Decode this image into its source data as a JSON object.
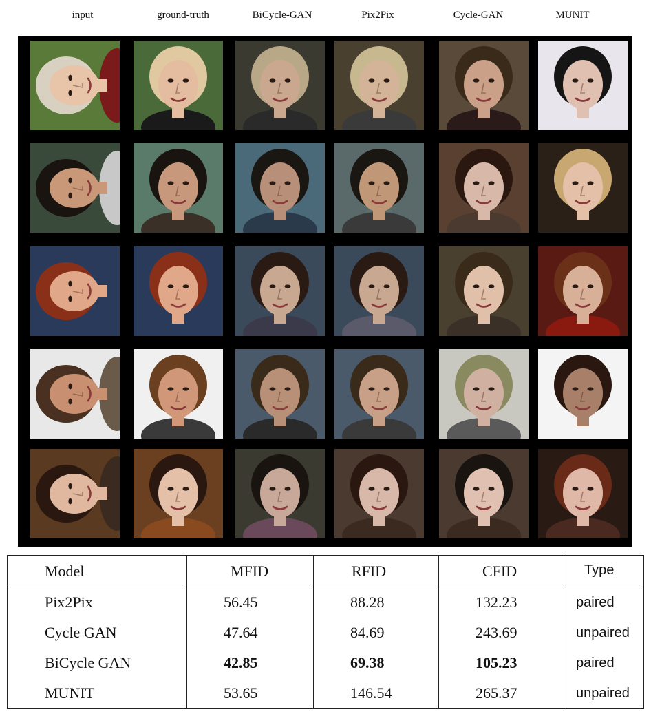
{
  "figure": {
    "column_labels": [
      "input",
      "ground-truth",
      "BiCycle-GAN",
      "Pix2Pix",
      "Cycle-GAN",
      "MUNIT"
    ],
    "rows": [
      {
        "cells": [
          {
            "bg": "#5a7a3a",
            "hair": "#d8d0c0",
            "skin": "#e8c4a8",
            "shirt": "#7a1a1a",
            "rotate": -90
          },
          {
            "bg": "#4a6a3a",
            "hair": "#e0c8a0",
            "skin": "#e4bca0",
            "shirt": "#1a1a1a",
            "rotate": 0
          },
          {
            "bg": "#3a3a30",
            "hair": "#b8a888",
            "skin": "#caa890",
            "shirt": "#2a2a2a",
            "rotate": 0
          },
          {
            "bg": "#4a4030",
            "hair": "#c8b890",
            "skin": "#d4b498",
            "shirt": "#3a3a3a",
            "rotate": 0
          },
          {
            "bg": "#5a4a3a",
            "hair": "#3a2a1a",
            "skin": "#caa088",
            "shirt": "#2a1a1a",
            "rotate": 0
          },
          {
            "bg": "#e8e6ec",
            "hair": "#151515",
            "skin": "#e0c0b0",
            "shirt": "#e8e6ec",
            "rotate": 0
          }
        ]
      },
      {
        "cells": [
          {
            "bg": "#3a4a3a",
            "hair": "#1a1410",
            "skin": "#c89878",
            "shirt": "#c8c8c8",
            "rotate": -90
          },
          {
            "bg": "#5a7a6a",
            "hair": "#1a1410",
            "skin": "#c8987c",
            "shirt": "#3a3028",
            "rotate": 0
          },
          {
            "bg": "#4a6a7a",
            "hair": "#1a1612",
            "skin": "#b8907a",
            "shirt": "#2a3a4a",
            "rotate": 0
          },
          {
            "bg": "#5a6a6a",
            "hair": "#1a1612",
            "skin": "#c09878",
            "shirt": "#3a3a3a",
            "rotate": 0
          },
          {
            "bg": "#5a4030",
            "hair": "#2a1810",
            "skin": "#d8b8a8",
            "shirt": "#4a3a30",
            "rotate": 0
          },
          {
            "bg": "#2a2018",
            "hair": "#c8a870",
            "skin": "#e4c0a8",
            "shirt": "#2a2018",
            "rotate": 0
          }
        ]
      },
      {
        "cells": [
          {
            "bg": "#2a3a5a",
            "hair": "#8a3018",
            "skin": "#e0a888",
            "shirt": "#2a3a5a",
            "rotate": -90
          },
          {
            "bg": "#2a3a5a",
            "hair": "#8a3018",
            "skin": "#e0a888",
            "shirt": "#2a3a5a",
            "rotate": 0
          },
          {
            "bg": "#3a4a5a",
            "hair": "#2a1a14",
            "skin": "#c8a890",
            "shirt": "#3a3a4a",
            "rotate": 0
          },
          {
            "bg": "#3a4a5a",
            "hair": "#2a1a14",
            "skin": "#c8a890",
            "shirt": "#5a5a6a",
            "rotate": 0
          },
          {
            "bg": "#4a4030",
            "hair": "#3a2a1a",
            "skin": "#e0c0a8",
            "shirt": "#3a3028",
            "rotate": 0
          },
          {
            "bg": "#5a1a14",
            "hair": "#6a3018",
            "skin": "#d8b098",
            "shirt": "#8a1a10",
            "rotate": 0
          }
        ]
      },
      {
        "cells": [
          {
            "bg": "#e8e8e8",
            "hair": "#4a3020",
            "skin": "#c89070",
            "shirt": "#6a5a4a",
            "rotate": -90
          },
          {
            "bg": "#f0f0f0",
            "hair": "#6a4020",
            "skin": "#d09878",
            "shirt": "#3a3a3a",
            "rotate": 0
          },
          {
            "bg": "#4a5a6a",
            "hair": "#3a2a1a",
            "skin": "#b89078",
            "shirt": "#2a2a2a",
            "rotate": 0
          },
          {
            "bg": "#4a5a6a",
            "hair": "#3a2a1a",
            "skin": "#c8a088",
            "shirt": "#3a3a3a",
            "rotate": 0
          },
          {
            "bg": "#c8c8c0",
            "hair": "#8a8a60",
            "skin": "#d0b0a0",
            "shirt": "#5a5a5a",
            "rotate": 0
          },
          {
            "bg": "#f4f4f4",
            "hair": "#2a1810",
            "skin": "#a8806a",
            "shirt": "#f4f4f4",
            "rotate": 0
          }
        ]
      },
      {
        "cells": [
          {
            "bg": "#5a3a20",
            "hair": "#2a1810",
            "skin": "#e0b8a0",
            "shirt": "#3a2a20",
            "rotate": -90
          },
          {
            "bg": "#6a4020",
            "hair": "#2a1810",
            "skin": "#e4c0a8",
            "shirt": "#8a4a20",
            "rotate": 0
          },
          {
            "bg": "#3a3a30",
            "hair": "#1a1410",
            "skin": "#c8a898",
            "shirt": "#6a4a5a",
            "rotate": 0
          },
          {
            "bg": "#4a3a30",
            "hair": "#2a1810",
            "skin": "#d8b8a8",
            "shirt": "#3a2a20",
            "rotate": 0
          },
          {
            "bg": "#4a3a30",
            "hair": "#1a1410",
            "skin": "#e0c0b0",
            "shirt": "#3a2a20",
            "rotate": 0
          },
          {
            "bg": "#2a1a14",
            "hair": "#6a2a18",
            "skin": "#e0b8a8",
            "shirt": "#4a2a20",
            "rotate": 0
          }
        ]
      }
    ]
  },
  "table": {
    "headers": {
      "model": "Model",
      "mfid": "MFID",
      "rfid": "RFID",
      "cfid": "CFID",
      "type": "Type"
    },
    "rows": [
      {
        "model": "Pix2Pix",
        "mfid": "56.45",
        "rfid": "88.28",
        "cfid": "132.23",
        "type": "paired",
        "bold": false
      },
      {
        "model": "Cycle GAN",
        "mfid": "47.64",
        "rfid": "84.69",
        "cfid": "243.69",
        "type": "unpaired",
        "bold": false
      },
      {
        "model": "BiCycle GAN",
        "mfid": "42.85",
        "rfid": "69.38",
        "cfid": "105.23",
        "type": "paired",
        "bold": true
      },
      {
        "model": "MUNIT",
        "mfid": "53.65",
        "rfid": "146.54",
        "cfid": "265.37",
        "type": "unpaired",
        "bold": false
      }
    ]
  }
}
